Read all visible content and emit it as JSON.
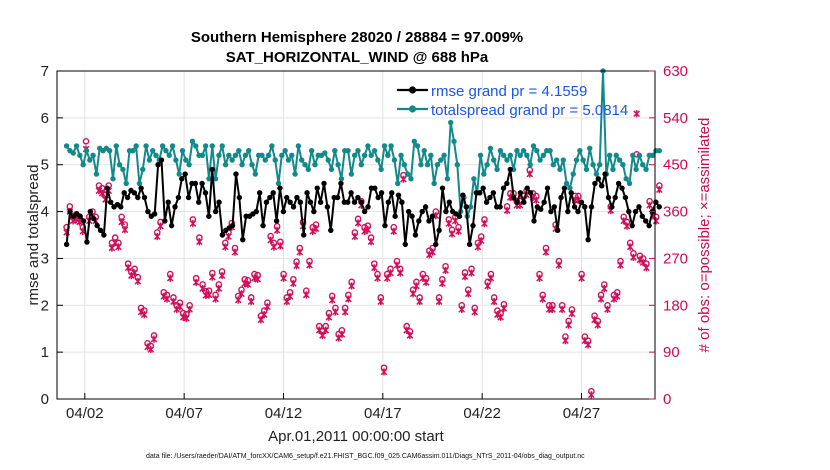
{
  "chart_data": {
    "type": "line",
    "title": "Southern Hemisphere 28020 / 28884 = 97.009%",
    "subtitle": "SAT_HORIZONTAL_WIND @ 688 hPa",
    "xlabel": "Apr.01,2011 00:00:00 start",
    "ylabel": "rmse and totalspread",
    "ylabel_right": "# of obs: o=possible; ×=assimilated",
    "xlim": [
      0.6,
      30.7
    ],
    "ylim": [
      0,
      7
    ],
    "ylim_right": [
      0,
      630
    ],
    "x_ticks": [
      {
        "value": 2,
        "label": "04/02"
      },
      {
        "value": 7,
        "label": "04/07"
      },
      {
        "value": 12,
        "label": "04/12"
      },
      {
        "value": 17,
        "label": "04/17"
      },
      {
        "value": 22,
        "label": "04/22"
      },
      {
        "value": 27,
        "label": "04/27"
      }
    ],
    "y_ticks": [
      0,
      1,
      2,
      3,
      4,
      5,
      6,
      7
    ],
    "y_ticks_right": [
      0,
      90,
      180,
      270,
      360,
      450,
      540,
      630
    ],
    "legend": {
      "position": "top-right",
      "entries": [
        "rmse grand pr = 4.1559",
        "totalspread grand pr = 5.0814"
      ]
    },
    "colors": {
      "rmse": "#000000",
      "totalspread": "#138a8a",
      "obs": "#d0105a",
      "legend_text": "#1a57e6"
    },
    "footer": "data file: /Users/raeder/DAI/ATM_forcXX/CAM6_setup/f.e21.FHIST_BGC.f09_025.CAM6assim.011/Diags_NTrS_2011-04/obs_diag_output.nc",
    "series": [
      {
        "name": "rmse",
        "values": [
          3.3,
          4.0,
          3.9,
          3.95,
          3.9,
          3.8,
          3.35,
          4.0,
          3.85,
          3.7,
          3.6,
          3.5,
          4.5,
          4.2,
          4.1,
          4.15,
          4.1,
          4.4,
          4.3,
          4.45,
          4.4,
          4.3,
          4.5,
          4.3,
          4.0,
          3.9,
          3.95,
          5.0,
          5.1,
          3.8,
          4.2,
          3.7,
          4.1,
          4.3,
          4.7,
          4.8,
          4.3,
          4.6,
          4.6,
          4.2,
          4.6,
          4.4,
          3.9,
          4.9,
          4.0,
          4.2,
          3.5,
          3.6,
          3.65,
          3.7,
          4.8,
          4.3,
          3.4,
          3.9,
          3.9,
          3.95,
          4.0,
          4.4,
          3.7,
          4.2,
          4.3,
          4.4,
          3.8,
          4.5,
          4.0,
          4.3,
          4.2,
          4.1,
          4.3,
          4.2,
          3.5,
          4.4,
          4.2,
          4.0,
          4.5,
          4.2,
          4.6,
          4.1,
          3.6,
          4.3,
          4.3,
          4.6,
          4.2,
          4.2,
          4.4,
          4.2,
          4.3,
          4.2,
          4.0,
          4.1,
          4.5,
          4.5,
          4.3,
          4.4,
          3.7,
          4.2,
          4.4,
          3.9,
          4.35,
          4.2,
          3.3,
          4.0,
          3.9,
          3.5,
          3.8,
          4.0,
          4.1,
          3.8,
          3.9,
          3.3,
          3.6,
          4.5,
          4.0,
          4.2,
          4.0,
          3.95,
          3.9,
          4.35,
          4.1,
          3.3,
          3.7,
          4.4,
          4.4,
          4.5,
          4.2,
          4.3,
          4.4,
          4.1,
          4.1,
          4.5,
          4.6,
          4.9,
          4.3,
          4.2,
          4.4,
          4.2,
          4.5,
          4.4,
          3.8,
          4.1,
          4.05,
          4.2,
          4.5,
          4.0,
          4.1,
          3.6,
          4.3,
          4.5,
          4.0,
          4.4,
          4.1,
          4.0,
          4.2,
          4.1,
          3.4,
          4.1,
          4.6,
          4.7,
          4.55,
          4.8,
          4.3,
          4.1,
          4.3,
          4.6,
          4.5,
          4.3,
          4.0,
          3.7,
          4.0,
          4.1,
          3.9,
          3.8,
          3.7,
          4.0,
          4.2,
          4.1
        ]
      },
      {
        "name": "totalspread",
        "values": [
          5.4,
          5.3,
          5.25,
          5.4,
          5.2,
          5.0,
          5.3,
          5.1,
          5.2,
          4.8,
          5.35,
          5.3,
          5.35,
          5.3,
          4.7,
          5.4,
          5.0,
          4.9,
          4.6,
          5.3,
          5.3,
          5.4,
          4.6,
          4.9,
          5.4,
          5.1,
          5.3,
          5.2,
          5.1,
          5.4,
          5.3,
          5.2,
          5.4,
          5.1,
          4.8,
          5.3,
          5.1,
          5.0,
          5.5,
          5.4,
          5.2,
          5.2,
          5.4,
          4.7,
          5.4,
          4.7,
          5.2,
          5.4,
          5.0,
          5.2,
          5.1,
          5.2,
          5.3,
          5.0,
          5.2,
          5.3,
          5.0,
          4.8,
          5.2,
          5.2,
          5.1,
          5.2,
          5.4,
          5.1,
          4.6,
          5.2,
          5.3,
          5.1,
          5.2,
          4.8,
          5.4,
          5.1,
          5.0,
          4.9,
          5.3,
          5.0,
          5.2,
          5.2,
          5.25,
          5.1,
          4.9,
          5.3,
          5.0,
          4.7,
          5.3,
          5.3,
          4.8,
          5.2,
          5.3,
          5.0,
          5.2,
          5.4,
          5.2,
          5.3,
          5.1,
          4.9,
          5.4,
          5.2,
          5.4,
          5.1,
          4.6,
          5.2,
          5.0,
          4.8,
          4.7,
          5.5,
          5.4,
          5.0,
          5.3,
          5.0,
          5.2,
          4.6,
          5.0,
          5.1,
          5.2,
          4.7,
          5.9,
          5.5,
          5.0,
          4.0,
          4.3,
          3.9,
          4.1,
          4.7,
          4.4,
          5.2,
          4.8,
          5.0,
          5.35,
          5.1,
          4.9,
          5.3,
          5.2,
          5.1,
          5.2,
          4.9,
          5.3,
          5.2,
          5.3,
          5.2,
          5.0,
          5.4,
          5.3,
          5.1,
          5.2,
          5.3,
          5.3,
          5.0,
          5.1,
          4.9,
          5.1,
          4.6,
          4.5,
          4.8,
          5.1,
          5.3,
          5.1,
          4.9,
          5.35,
          5.0,
          4.8,
          5.0,
          7.0,
          4.8,
          5.2,
          4.9,
          5.2,
          5.1,
          5.0,
          4.7,
          4.6,
          5.2,
          4.9,
          5.2,
          5.0,
          4.9,
          5.2,
          5.2,
          5.3,
          5.3
        ]
      },
      {
        "name": "obs possible",
        "values": [
          330,
          370,
          350,
          355,
          350,
          330,
          495,
          350,
          360,
          350,
          410,
          405,
          392,
          410,
          300,
          310,
          300,
          350,
          335,
          260,
          245,
          250,
          234,
          175,
          170,
          107,
          102,
          122,
          320,
          340,
          205,
          200,
          240,
          195,
          180,
          185,
          165,
          163,
          180,
          345,
          232,
          310,
          220,
          207,
          208,
          242,
          200,
          220,
          245,
          300,
          320,
          338,
          290,
          198,
          210,
          230,
          228,
          195,
          240,
          238,
          160,
          170,
          185,
          313,
          300,
          332,
          302,
          240,
          195,
          205,
          230,
          264,
          290,
          340,
          208,
          265,
          330,
          335,
          140,
          130,
          140,
          165,
          198,
          175,
          125,
          132,
          175,
          200,
          225,
          320,
          346,
          380,
          330,
          333,
          310,
          260,
          240,
          195,
          60,
          240,
          250,
          330,
          265,
          250,
          430,
          140,
          130,
          210,
          225,
          195,
          240,
          232,
          285,
          290,
          360,
          195,
          230,
          255,
          345,
          325,
          350,
          330,
          180,
          243,
          210,
          250,
          175,
          300,
          312,
          345,
          225,
          240,
          195,
          170,
          165,
          182,
          370,
          395,
          395,
          380,
          380,
          390,
          400,
          440,
          395,
          390,
          240,
          200,
          290,
          180,
          180,
          335,
          265,
          180,
          120,
          150,
          172,
          390,
          390,
          240,
          120,
          112,
          15,
          160,
          150,
          200,
          220,
          180,
          370,
          200,
          205,
          265,
          350,
          340,
          300,
          280,
          470,
          275,
          270,
          260,
          380,
          360,
          350,
          410
        ]
      },
      {
        "name": "obs assimilated",
        "values": [
          320,
          360,
          342,
          345,
          340,
          322,
          480,
          342,
          350,
          342,
          400,
          395,
          383,
          400,
          290,
          300,
          292,
          340,
          325,
          252,
          237,
          242,
          226,
          167,
          162,
          100,
          95,
          115,
          312,
          332,
          197,
          192,
          232,
          187,
          172,
          177,
          157,
          155,
          172,
          337,
          224,
          302,
          212,
          199,
          200,
          234,
          192,
          212,
          237,
          292,
          312,
          330,
          282,
          190,
          202,
          222,
          220,
          187,
          232,
          230,
          152,
          162,
          177,
          305,
          292,
          324,
          294,
          232,
          187,
          197,
          222,
          256,
          282,
          332,
          200,
          257,
          322,
          327,
          132,
          122,
          132,
          157,
          190,
          167,
          117,
          124,
          167,
          192,
          217,
          312,
          338,
          372,
          322,
          325,
          302,
          252,
          232,
          187,
          52,
          232,
          242,
          322,
          257,
          242,
          422,
          132,
          122,
          202,
          217,
          187,
          232,
          224,
          277,
          282,
          352,
          187,
          222,
          247,
          337,
          317,
          342,
          322,
          172,
          235,
          202,
          242,
          167,
          292,
          304,
          337,
          217,
          232,
          187,
          162,
          157,
          174,
          362,
          387,
          387,
          372,
          372,
          382,
          392,
          432,
          387,
          382,
          232,
          192,
          282,
          172,
          172,
          327,
          257,
          172,
          112,
          142,
          164,
          382,
          382,
          232,
          112,
          104,
          8,
          152,
          142,
          192,
          212,
          172,
          362,
          192,
          197,
          257,
          342,
          332,
          292,
          272,
          548,
          267,
          262,
          252,
          372,
          352,
          342,
          402
        ]
      }
    ]
  }
}
